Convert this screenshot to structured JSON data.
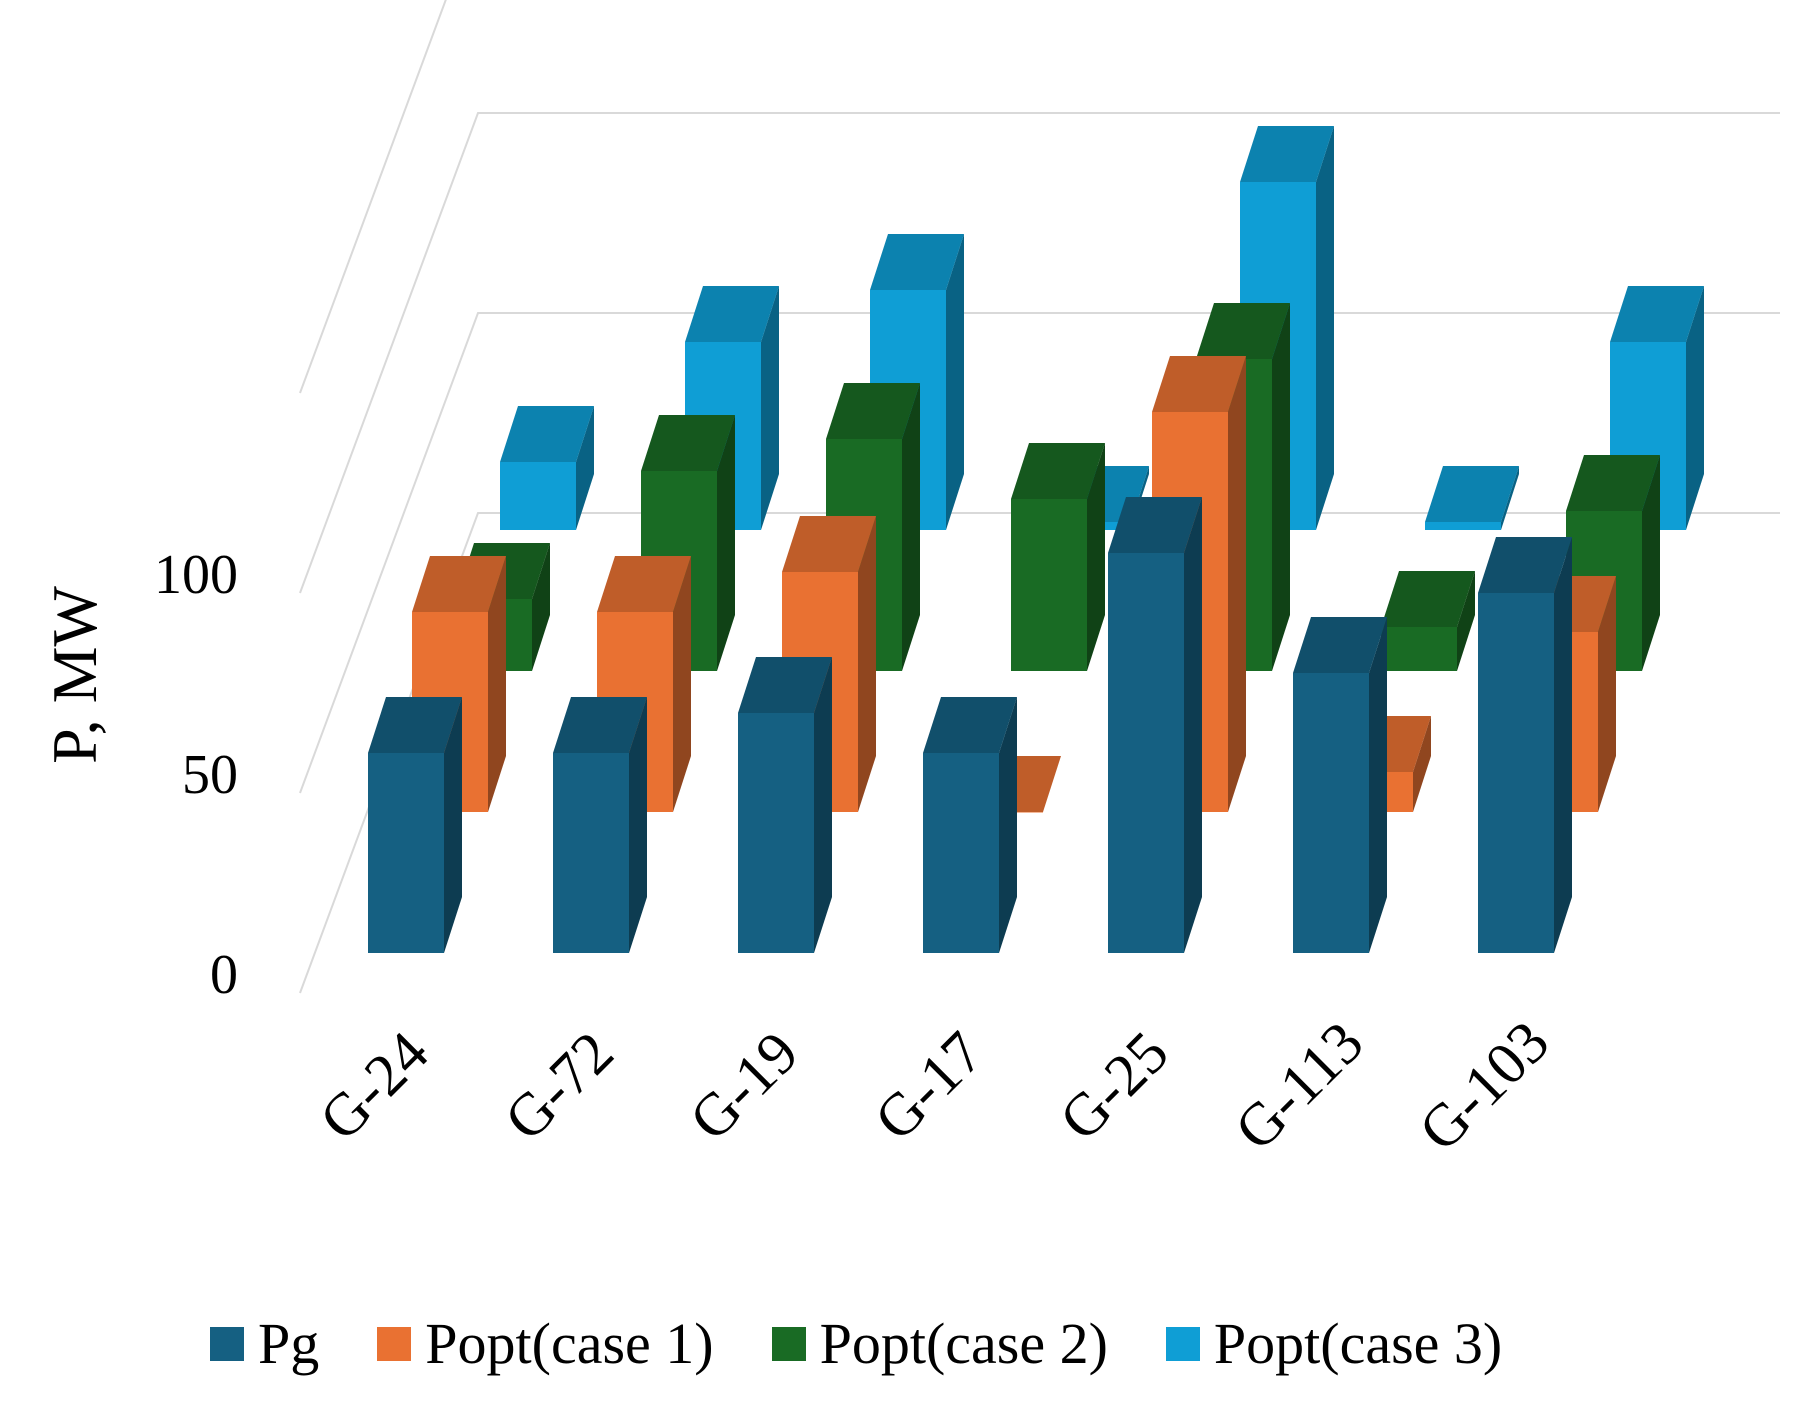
{
  "chart_data": {
    "type": "bar",
    "subtype": "3d-clustered-column",
    "title": "",
    "xlabel": "",
    "ylabel": "P, MW",
    "ylim": [
      0,
      150
    ],
    "yticks": [
      0,
      50,
      100
    ],
    "grid": true,
    "legend_position": "bottom",
    "categories": [
      "G-24",
      "G-72",
      "G-19",
      "G-17",
      "G-25",
      "G-113",
      "G-103"
    ],
    "series": [
      {
        "name": "Pg",
        "color": "#156082",
        "values": [
          50,
          50,
          60,
          50,
          100,
          70,
          90
        ]
      },
      {
        "name": "Popt(case 1)",
        "color": "#E97132",
        "values": [
          50,
          50,
          60,
          0,
          100,
          10,
          45
        ]
      },
      {
        "name": "Popt(case 2)",
        "color": "#196B24",
        "values": [
          18,
          50,
          58,
          43,
          78,
          11,
          40
        ]
      },
      {
        "name": "Popt(case 3)",
        "color": "#0F9ED5",
        "values": [
          17,
          47,
          60,
          2,
          87,
          2,
          47
        ]
      }
    ]
  }
}
